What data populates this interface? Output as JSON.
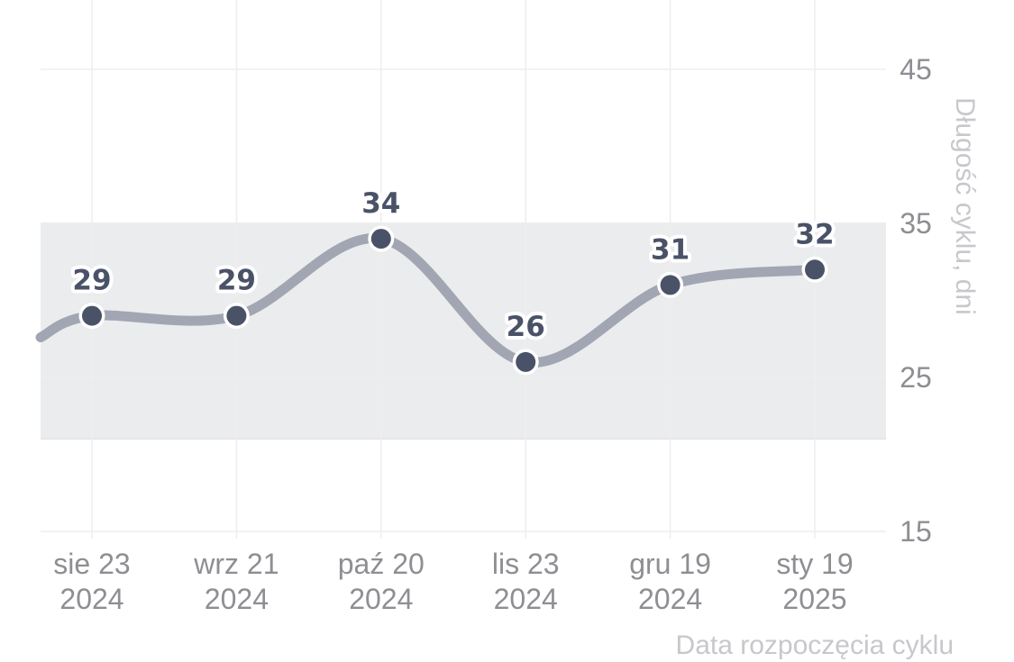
{
  "chart_data": {
    "type": "line",
    "categories": [
      "sie 23 2024",
      "wrz 21 2024",
      "paź 20 2024",
      "lis 23 2024",
      "gru 19 2024",
      "sty 19 2025"
    ],
    "x_tick_labels": [
      [
        "sie 23",
        "2024"
      ],
      [
        "wrz 21",
        "2024"
      ],
      [
        "paź 20",
        "2024"
      ],
      [
        "lis 23",
        "2024"
      ],
      [
        "gru 19",
        "2024"
      ],
      [
        "sty 19",
        "2025"
      ]
    ],
    "values": [
      29,
      29,
      34,
      26,
      31,
      32
    ],
    "xlabel": "Data rozpoczęcia cyklu",
    "ylabel": "Długość cyklu, dni",
    "ylim": [
      15,
      45
    ],
    "y_ticks": [
      15,
      25,
      35,
      45
    ],
    "normal_range": [
      21,
      35
    ],
    "y_axis_side": "right",
    "grid": true,
    "colors": {
      "line": "#a1a6b2",
      "point": "#4a5268",
      "band": "#ebecee",
      "grid": "#eeeeef",
      "tick_text": "#8e8e93",
      "axis_title": "#c7c7cc"
    }
  }
}
